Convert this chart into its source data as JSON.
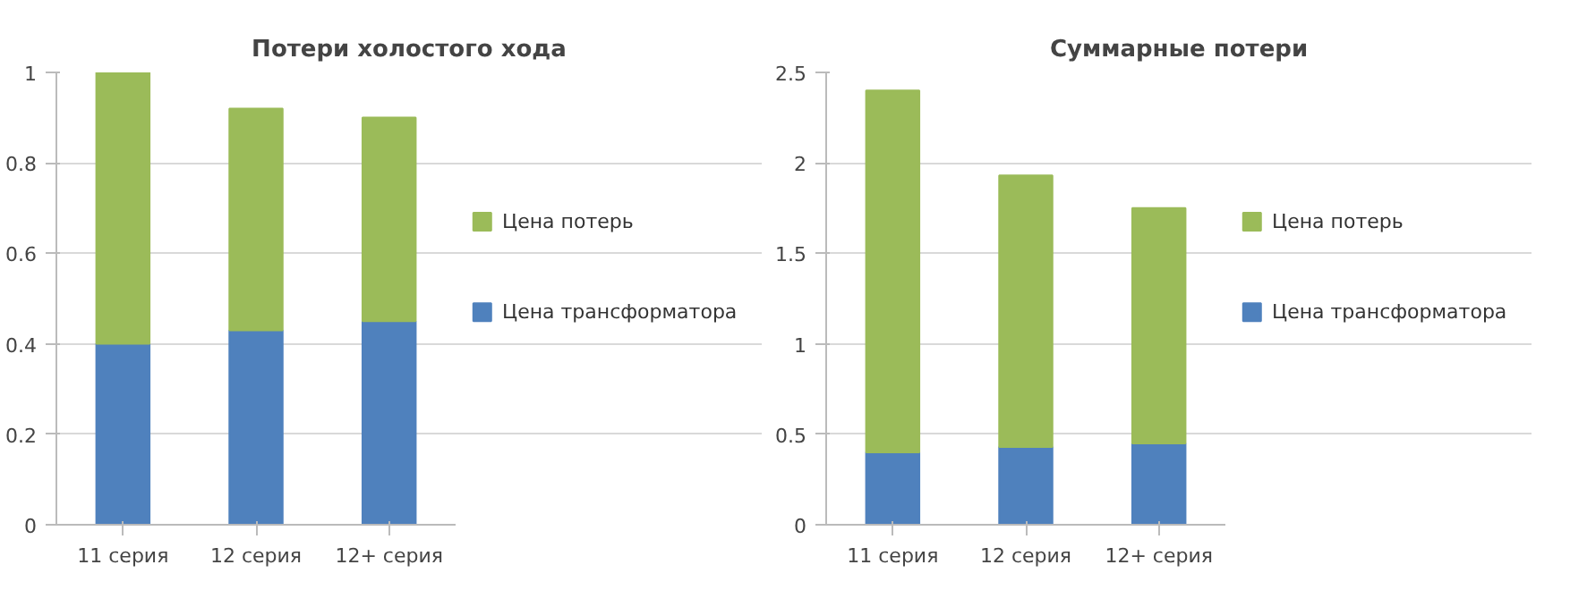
{
  "chart_data": [
    {
      "type": "bar",
      "title": "Потери холостого хода",
      "categories": [
        "11 серия",
        "12 серия",
        "12+ серия"
      ],
      "stacked": true,
      "series": [
        {
          "name": "Цена трансформатора",
          "color": "#4f81bd",
          "values": [
            0.4,
            0.43,
            0.45
          ]
        },
        {
          "name": "Цена потерь",
          "color": "#9bbb59",
          "values": [
            0.6,
            0.49,
            0.45
          ]
        }
      ],
      "ylim": [
        0,
        1
      ],
      "yticks": [
        0,
        0.2,
        0.4,
        0.6,
        0.8,
        1
      ],
      "grid": "y",
      "legend": "right"
    },
    {
      "type": "bar",
      "title": "Суммарные потери",
      "categories": [
        "11 серия",
        "12 серия",
        "12+ серия"
      ],
      "stacked": true,
      "series": [
        {
          "name": "Цена трансформатора",
          "color": "#4f81bd",
          "values": [
            0.4,
            0.43,
            0.45
          ]
        },
        {
          "name": "Цена потерь",
          "color": "#9bbb59",
          "values": [
            2.0,
            1.5,
            1.3
          ]
        }
      ],
      "ylim": [
        0,
        2.5
      ],
      "yticks": [
        0,
        0.5,
        1,
        1.5,
        2,
        2.5
      ],
      "grid": "y",
      "legend": "right"
    }
  ]
}
